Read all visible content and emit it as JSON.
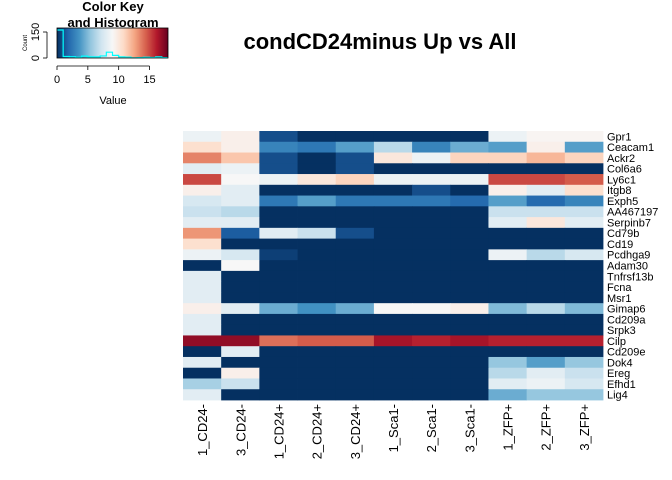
{
  "chart_data": {
    "type": "heatmap",
    "title": "condCD24minus Up vs All",
    "color_key": {
      "title_line1": "Color Key",
      "title_line2": "and Histogram",
      "y_label": "Count",
      "x_label": "Value",
      "x_ticks": [
        "0",
        "5",
        "10",
        "15"
      ],
      "y_ticks": [
        "0",
        "150"
      ],
      "range": [
        0,
        18
      ],
      "colors": [
        "#053061",
        "#2166ac",
        "#4393c3",
        "#92c5de",
        "#d1e5f0",
        "#f7f7f7",
        "#fddbc7",
        "#f4a582",
        "#d6604d",
        "#b2182b",
        "#67001f"
      ],
      "histogram_color": "#00ffff"
    },
    "columns": [
      "1_CD24-",
      "3_CD24-",
      "1_CD24+",
      "2_CD24+",
      "3_CD24+",
      "1_Sca1-",
      "2_Sca1-",
      "3_Sca1-",
      "1_ZFP+",
      "2_ZFP+",
      "3_ZFP+"
    ],
    "rows": [
      "Gpr1",
      "Ceacam1",
      "Ackr2",
      "Col6a6",
      "Ly6c1",
      "Itgb8",
      "Exph5",
      "AA467197",
      "Serpinb7",
      "Cd79b",
      "Cd19",
      "Pcdhga9",
      "Adam30",
      "Tnfrsf13b",
      "Fcna",
      "Msr1",
      "Gimap6",
      "Cd209a",
      "Srpk3",
      "Cilp",
      "Cd209e",
      "Dok4",
      "Ereg",
      "Efhd1",
      "Lig4"
    ],
    "values": [
      [
        8.5,
        9.5,
        1.0,
        0.0,
        0.0,
        0.0,
        0.0,
        0.0,
        8.5,
        9.2,
        9.2
      ],
      [
        10.5,
        9.5,
        3.0,
        2.5,
        4.0,
        6.5,
        3.0,
        4.5,
        4.0,
        9.5,
        4.0
      ],
      [
        13.5,
        11.5,
        1.0,
        0.0,
        1.0,
        10.0,
        8.5,
        11.0,
        11.0,
        12.0,
        11.0
      ],
      [
        8.0,
        8.5,
        1.0,
        0.0,
        1.0,
        0.0,
        0.0,
        0.0,
        0.0,
        0.0,
        0.0
      ],
      [
        15.0,
        9.0,
        8.5,
        10.0,
        11.0,
        8.5,
        8.5,
        8.5,
        15.0,
        15.0,
        14.5
      ],
      [
        9.5,
        8.0,
        0.0,
        0.0,
        0.0,
        0.0,
        1.0,
        0.0,
        9.5,
        8.0,
        10.5
      ],
      [
        7.5,
        8.0,
        2.5,
        4.0,
        2.5,
        2.5,
        2.5,
        2.0,
        4.0,
        2.0,
        3.0
      ],
      [
        7.0,
        6.5,
        0.0,
        0.0,
        0.0,
        0.0,
        0.0,
        0.0,
        7.0,
        7.0,
        7.0
      ],
      [
        8.0,
        8.0,
        0.0,
        0.0,
        0.0,
        0.0,
        0.0,
        0.0,
        8.0,
        10.0,
        8.0
      ],
      [
        13.0,
        1.5,
        8.0,
        7.0,
        1.0,
        0.0,
        0.0,
        0.0,
        0.0,
        0.0,
        0.0
      ],
      [
        10.5,
        0.0,
        0.0,
        0.0,
        0.0,
        0.0,
        0.0,
        0.0,
        0.0,
        0.0,
        0.0
      ],
      [
        8.5,
        7.5,
        0.5,
        0.0,
        0.0,
        0.0,
        0.0,
        0.0,
        8.5,
        6.5,
        7.5
      ],
      [
        0.0,
        9.0,
        0.0,
        0.0,
        0.0,
        0.0,
        0.0,
        0.0,
        0.0,
        0.0,
        0.0
      ],
      [
        8.0,
        0.0,
        0.0,
        0.0,
        0.0,
        0.0,
        0.0,
        0.0,
        0.0,
        0.0,
        0.0
      ],
      [
        8.0,
        0.0,
        0.0,
        0.0,
        0.0,
        0.0,
        0.0,
        0.0,
        0.0,
        0.0,
        0.0
      ],
      [
        8.0,
        0.0,
        0.0,
        0.0,
        0.0,
        0.0,
        0.0,
        0.0,
        0.0,
        0.0,
        0.0
      ],
      [
        9.5,
        8.0,
        4.5,
        3.5,
        4.5,
        9.0,
        9.0,
        9.5,
        5.0,
        6.5,
        5.0
      ],
      [
        8.0,
        0.0,
        0.0,
        0.0,
        0.0,
        0.0,
        0.0,
        0.0,
        0.0,
        0.0,
        0.0
      ],
      [
        8.0,
        0.0,
        0.0,
        0.0,
        0.0,
        0.0,
        0.0,
        0.0,
        0.0,
        0.0,
        0.0
      ],
      [
        17.0,
        17.0,
        14.0,
        14.5,
        14.5,
        16.5,
        16.0,
        16.5,
        16.0,
        16.0,
        16.0
      ],
      [
        0.0,
        8.0,
        0.0,
        0.0,
        0.0,
        0.0,
        0.0,
        0.0,
        0.0,
        0.0,
        0.0
      ],
      [
        8.0,
        0.0,
        0.0,
        0.0,
        0.0,
        0.0,
        0.0,
        0.0,
        5.5,
        4.0,
        5.5
      ],
      [
        0.0,
        9.5,
        0.0,
        0.0,
        0.0,
        0.0,
        0.0,
        0.0,
        6.5,
        8.0,
        7.0
      ],
      [
        6.0,
        7.0,
        0.0,
        0.0,
        0.0,
        0.0,
        0.0,
        0.0,
        8.0,
        8.5,
        7.5
      ],
      [
        8.0,
        0.0,
        0.0,
        0.0,
        0.0,
        0.0,
        0.0,
        0.0,
        4.5,
        5.5,
        5.5
      ]
    ]
  }
}
